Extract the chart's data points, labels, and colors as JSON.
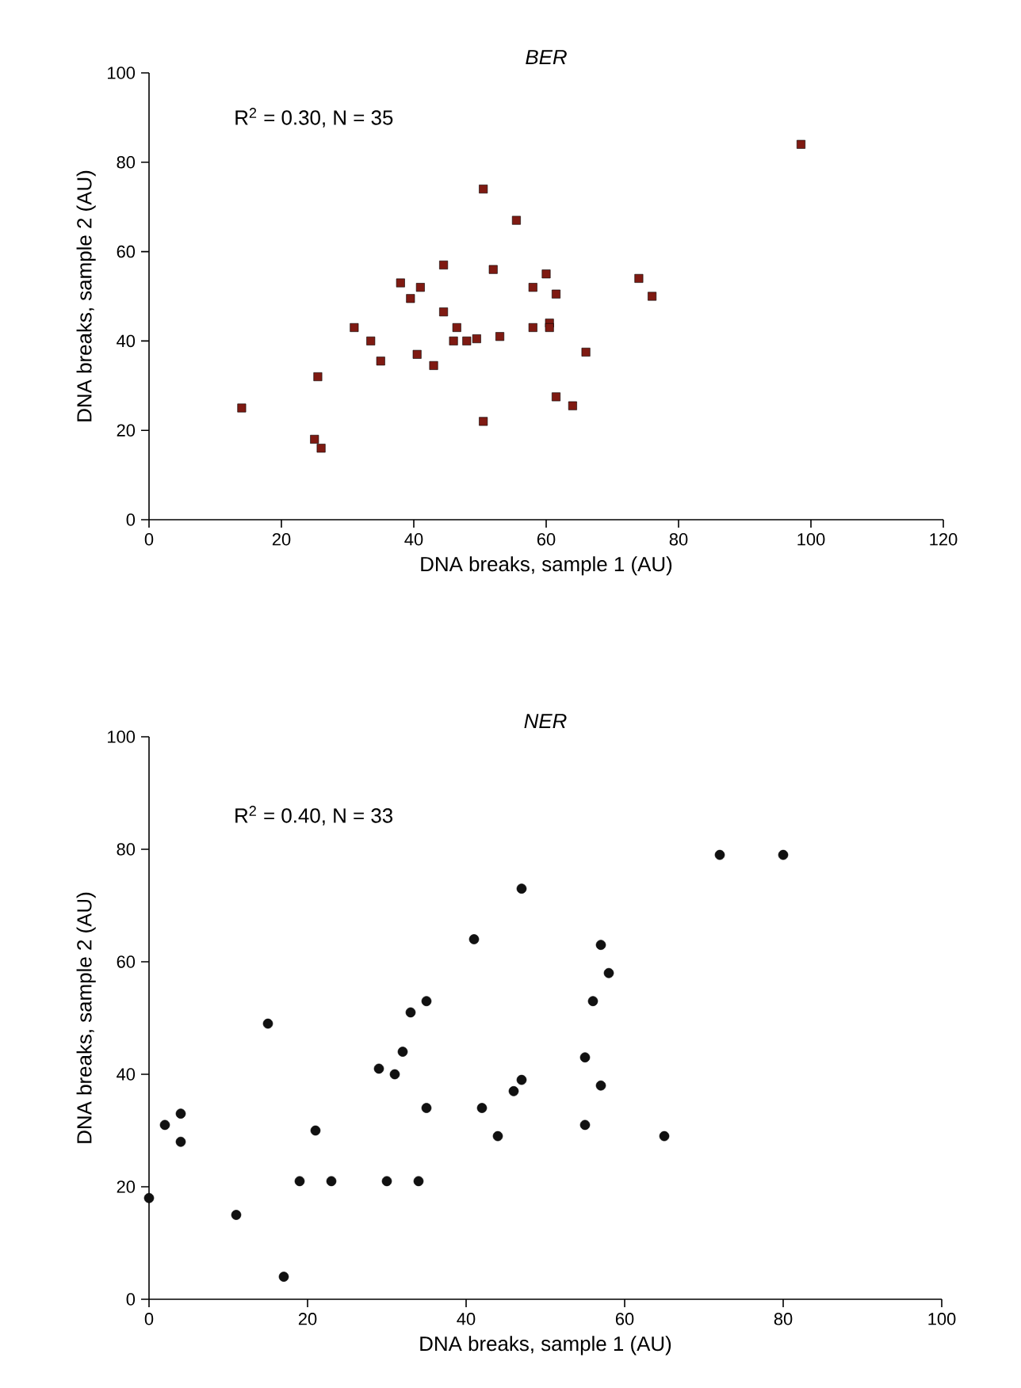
{
  "chart_data": [
    {
      "type": "scatter",
      "title": "*BER*",
      "xlabel": "DNA breaks, sample 1 (AU)",
      "ylabel": "DNA breaks, sample 2 (AU)",
      "annotations": [
        "R$^{2}$ = 0.30, N = 35"
      ],
      "marker": "square",
      "xlim": [
        0,
        120
      ],
      "xticks": [
        0,
        20,
        40,
        60,
        80,
        100,
        120
      ],
      "ylim": [
        0,
        100
      ],
      "yticks": [
        0,
        20,
        40,
        60,
        80,
        100
      ],
      "series": [
        {
          "color": "#7f1a12",
          "x": [
            14,
            25,
            25.5,
            26,
            31,
            33.5,
            35,
            38,
            39.5,
            40.5,
            41,
            43,
            44.5,
            44.5,
            46,
            46.5,
            48,
            49.5,
            50.5,
            50.5,
            52,
            53,
            55.5,
            58,
            58,
            60,
            60.5,
            60.5,
            61.5,
            61.5,
            64,
            66,
            74,
            76,
            98.5
          ],
          "values": [
            25,
            18,
            32,
            16,
            43,
            40,
            35.5,
            53,
            49.5,
            37,
            52,
            34.5,
            57,
            46.5,
            40,
            43,
            40,
            40.5,
            74,
            22,
            56,
            41,
            67,
            43,
            52,
            55,
            44,
            43,
            50.5,
            27.5,
            25.5,
            37.5,
            54,
            50,
            84
          ]
        }
      ]
    },
    {
      "type": "scatter",
      "title": "*NER*",
      "xlabel": "DNA breaks, sample 1 (AU)",
      "ylabel": "DNA breaks, sample 2 (AU)",
      "annotations": [
        "R$^{2}$ = 0.40, N = 33"
      ],
      "marker": "circle",
      "xlim": [
        0,
        100
      ],
      "xticks": [
        0,
        20,
        40,
        60,
        80,
        100
      ],
      "ylim": [
        0,
        100
      ],
      "yticks": [
        0,
        20,
        40,
        60,
        80,
        100
      ],
      "series": [
        {
          "color": "#111111",
          "x": [
            72,
            80,
            47,
            41,
            57,
            58,
            56,
            35,
            33,
            15,
            32,
            55,
            29,
            31,
            47,
            57,
            46,
            35,
            42,
            4,
            2,
            55,
            21,
            44,
            65,
            4,
            19,
            23,
            30,
            34,
            0,
            11,
            17
          ],
          "values": [
            79,
            79,
            73,
            64,
            63,
            58,
            53,
            53,
            51,
            49,
            44,
            43,
            41,
            40,
            39,
            38,
            37,
            34,
            34,
            33,
            31,
            31,
            30,
            29,
            29,
            28,
            21,
            21,
            21,
            21,
            18,
            15,
            4
          ]
        }
      ]
    }
  ]
}
